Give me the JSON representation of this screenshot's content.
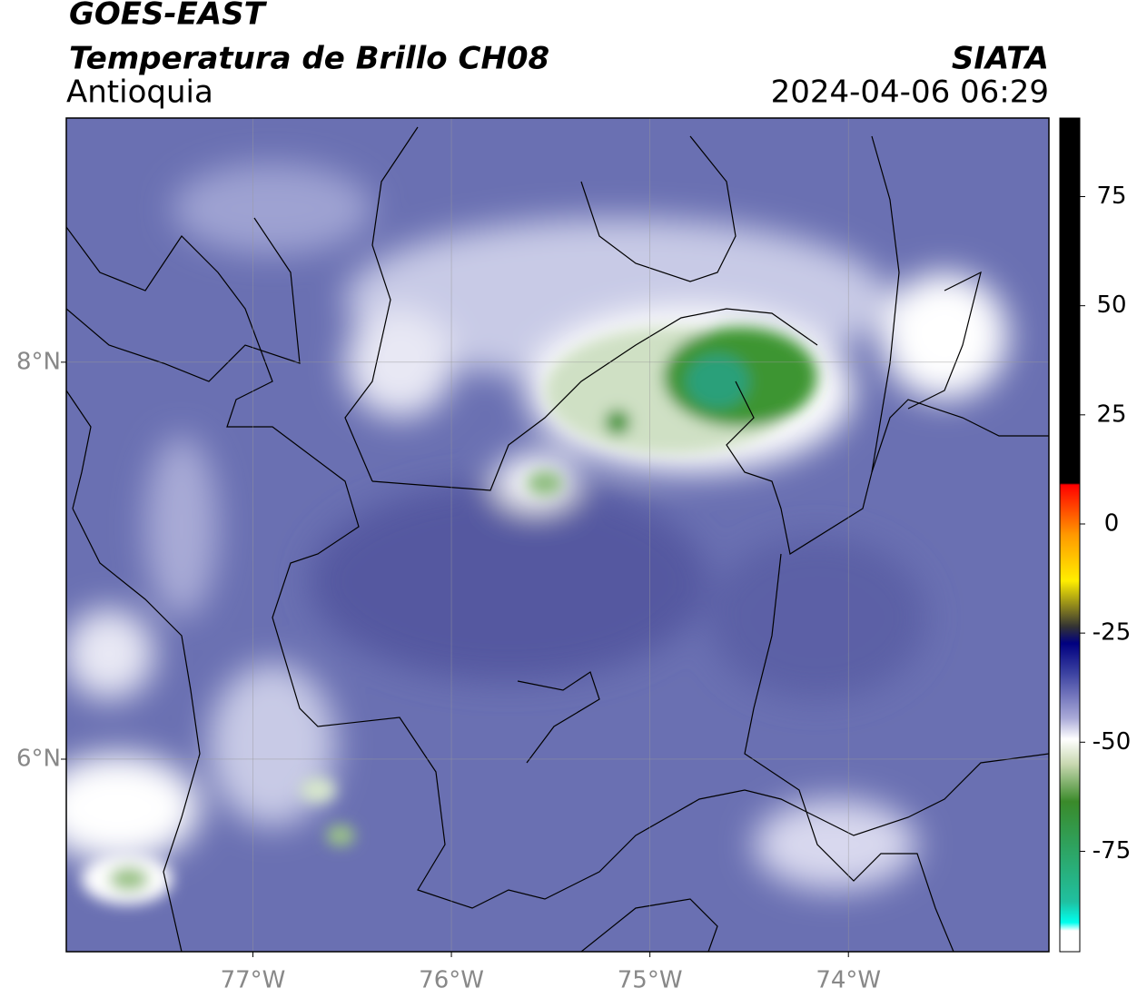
{
  "map": {
    "title": "GOES-EAST",
    "subtitle": "Temperatura de Brillo CH08",
    "region": "Antioquia",
    "source": "SIATA",
    "timestamp": "2024-04-06 06:29",
    "xlim": [
      -77.94,
      -72.99
    ],
    "ylim": [
      5.03,
      9.23
    ],
    "xticks": [
      {
        "value": -77,
        "label": "77°W"
      },
      {
        "value": -76,
        "label": "76°W"
      },
      {
        "value": -75,
        "label": "75°W"
      },
      {
        "value": -74,
        "label": "74°W"
      }
    ],
    "yticks": [
      {
        "value": 6,
        "label": "6°N"
      },
      {
        "value": 8,
        "label": "8°N"
      }
    ],
    "grid": true,
    "colorbar": {
      "lim": [
        -98,
        93
      ],
      "ticks": [
        75,
        50,
        25,
        0,
        -25,
        -50,
        -75
      ]
    }
  }
}
